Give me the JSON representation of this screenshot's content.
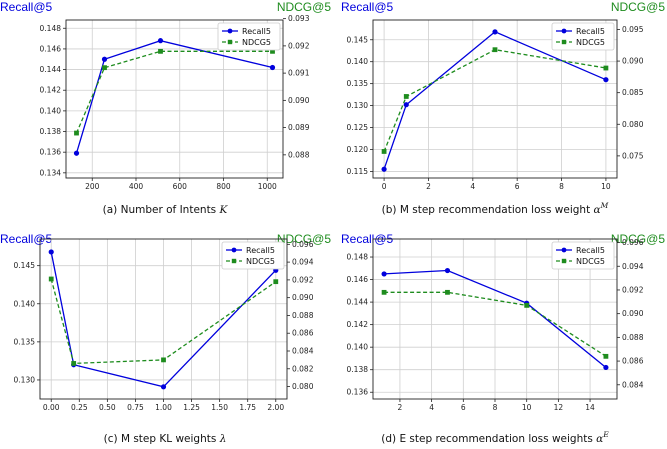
{
  "colors": {
    "recall": "#0000dd",
    "ndcg": "#1e8c1e",
    "grid": "#cfcfcf",
    "axis": "#222222"
  },
  "chart_data": [
    {
      "type": "line",
      "caption": "(a) Number of Intents K",
      "left_axis_title": "Recall@5",
      "right_axis_title": "NDCG@5",
      "legend_position": "top-right",
      "grid": true,
      "x": [
        128,
        256,
        512,
        1024
      ],
      "xlim": [
        80,
        1072
      ],
      "xticks": [
        "200",
        "400",
        "600",
        "800",
        "1000"
      ],
      "ylim_left": [
        0.1335,
        0.1488
      ],
      "yticks_left": [
        "0.134",
        "0.136",
        "0.138",
        "0.140",
        "0.142",
        "0.144",
        "0.146",
        "0.148"
      ],
      "ylim_right": [
        0.08715,
        0.09295
      ],
      "yticks_right": [
        "0.088",
        "0.089",
        "0.090",
        "0.091",
        "0.092",
        "0.093"
      ],
      "series": [
        {
          "name": "Recall5",
          "axis": "left",
          "marker": "circle",
          "dash": false,
          "values": [
            0.1359,
            0.145,
            0.1468,
            0.1442
          ]
        },
        {
          "name": "NDCG5",
          "axis": "right",
          "marker": "square",
          "dash": true,
          "values": [
            0.0888,
            0.0912,
            0.0918,
            0.0918
          ]
        }
      ]
    },
    {
      "type": "line",
      "caption": "(b) M step recommendation loss weight α^M",
      "left_axis_title": "Recall@5",
      "right_axis_title": "NDCG@5",
      "legend_position": "top-right",
      "grid": true,
      "x": [
        0,
        1,
        5,
        10
      ],
      "xlim": [
        -0.5,
        10.5
      ],
      "xticks": [
        "0",
        "2",
        "4",
        "6",
        "8",
        "10"
      ],
      "ylim_left": [
        0.1135,
        0.1495
      ],
      "yticks_left": [
        "0.115",
        "0.120",
        "0.125",
        "0.130",
        "0.135",
        "0.140",
        "0.145"
      ],
      "ylim_right": [
        0.0715,
        0.0965
      ],
      "yticks_right": [
        "0.075",
        "0.080",
        "0.085",
        "0.090",
        "0.095"
      ],
      "series": [
        {
          "name": "Recall5",
          "axis": "left",
          "marker": "circle",
          "dash": false,
          "values": [
            0.1155,
            0.1302,
            0.1468,
            0.1359
          ]
        },
        {
          "name": "NDCG5",
          "axis": "right",
          "marker": "square",
          "dash": true,
          "values": [
            0.0757,
            0.0844,
            0.0918,
            0.0889
          ]
        }
      ]
    },
    {
      "type": "line",
      "caption": "(c) M step KL weights λ",
      "left_axis_title": "Recall@5",
      "right_axis_title": "NDCG@5",
      "legend_position": "top-right",
      "grid": true,
      "x": [
        0.0,
        0.2,
        1.0,
        2.0
      ],
      "xlim": [
        -0.1,
        2.1
      ],
      "xticks": [
        "0.00",
        "0.25",
        "0.50",
        "0.75",
        "1.00",
        "1.25",
        "1.50",
        "1.75",
        "2.00"
      ],
      "ylim_left": [
        0.1275,
        0.1485
      ],
      "yticks_left": [
        "0.130",
        "0.135",
        "0.140",
        "0.145"
      ],
      "ylim_right": [
        0.0786,
        0.0966
      ],
      "yticks_right": [
        "0.080",
        "0.082",
        "0.084",
        "0.086",
        "0.088",
        "0.090",
        "0.092",
        "0.094",
        "0.096"
      ],
      "series": [
        {
          "name": "Recall5",
          "axis": "left",
          "marker": "circle",
          "dash": false,
          "values": [
            0.1468,
            0.132,
            0.1291,
            0.1444
          ]
        },
        {
          "name": "NDCG5",
          "axis": "right",
          "marker": "square",
          "dash": true,
          "values": [
            0.0921,
            0.0826,
            0.083,
            0.0918
          ]
        }
      ]
    },
    {
      "type": "line",
      "caption": "(d) E step recommendation loss weights α^E",
      "left_axis_title": "Recall@5",
      "right_axis_title": "NDCG@5",
      "legend_position": "top-right",
      "grid": true,
      "x": [
        1,
        5,
        10,
        15
      ],
      "xlim": [
        0.3,
        15.7
      ],
      "xticks": [
        "2",
        "4",
        "6",
        "8",
        "10",
        "12",
        "14"
      ],
      "ylim_left": [
        0.1354,
        0.1496
      ],
      "yticks_left": [
        "0.136",
        "0.138",
        "0.140",
        "0.142",
        "0.144",
        "0.146",
        "0.148"
      ],
      "ylim_right": [
        0.0828,
        0.0963
      ],
      "yticks_right": [
        "0.084",
        "0.086",
        "0.088",
        "0.090",
        "0.092",
        "0.094",
        "0.096"
      ],
      "series": [
        {
          "name": "Recall5",
          "axis": "left",
          "marker": "circle",
          "dash": false,
          "values": [
            0.1465,
            0.1468,
            0.1439,
            0.1382
          ]
        },
        {
          "name": "NDCG5",
          "axis": "right",
          "marker": "square",
          "dash": true,
          "values": [
            0.0918,
            0.0918,
            0.0907,
            0.0864
          ]
        }
      ]
    }
  ]
}
